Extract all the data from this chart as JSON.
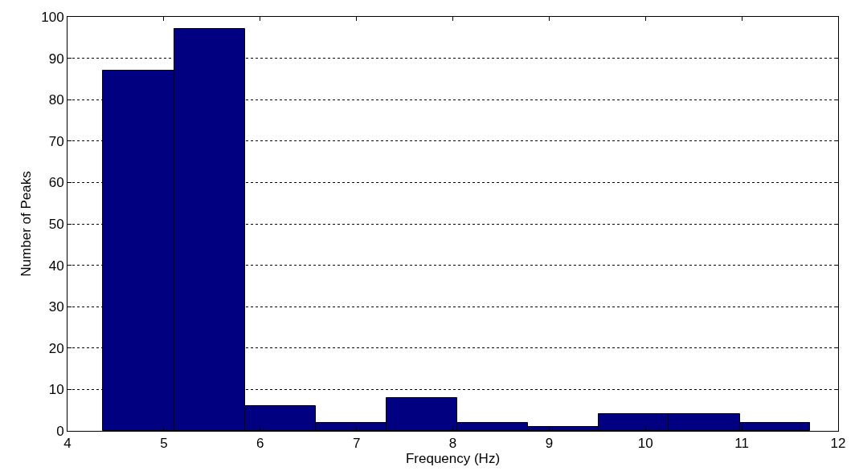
{
  "chart_data": {
    "type": "histogram",
    "xlabel": "Frequency (Hz)",
    "ylabel": "Number of Peaks",
    "bins": [
      4.37,
      5.11,
      5.84,
      6.58,
      7.31,
      8.05,
      8.78,
      9.51,
      10.24,
      10.98,
      11.71
    ],
    "values": [
      87,
      97,
      6,
      2,
      8,
      2,
      1,
      4,
      4,
      2
    ],
    "color": "#000080",
    "xlim": [
      4,
      12
    ],
    "xticks": [
      4,
      5,
      6,
      7,
      8,
      9,
      10,
      11,
      12
    ],
    "ylim": [
      0,
      100
    ],
    "yticks": [
      0,
      10,
      20,
      30,
      40,
      50,
      60,
      70,
      80,
      90,
      100
    ],
    "grid": "y"
  }
}
